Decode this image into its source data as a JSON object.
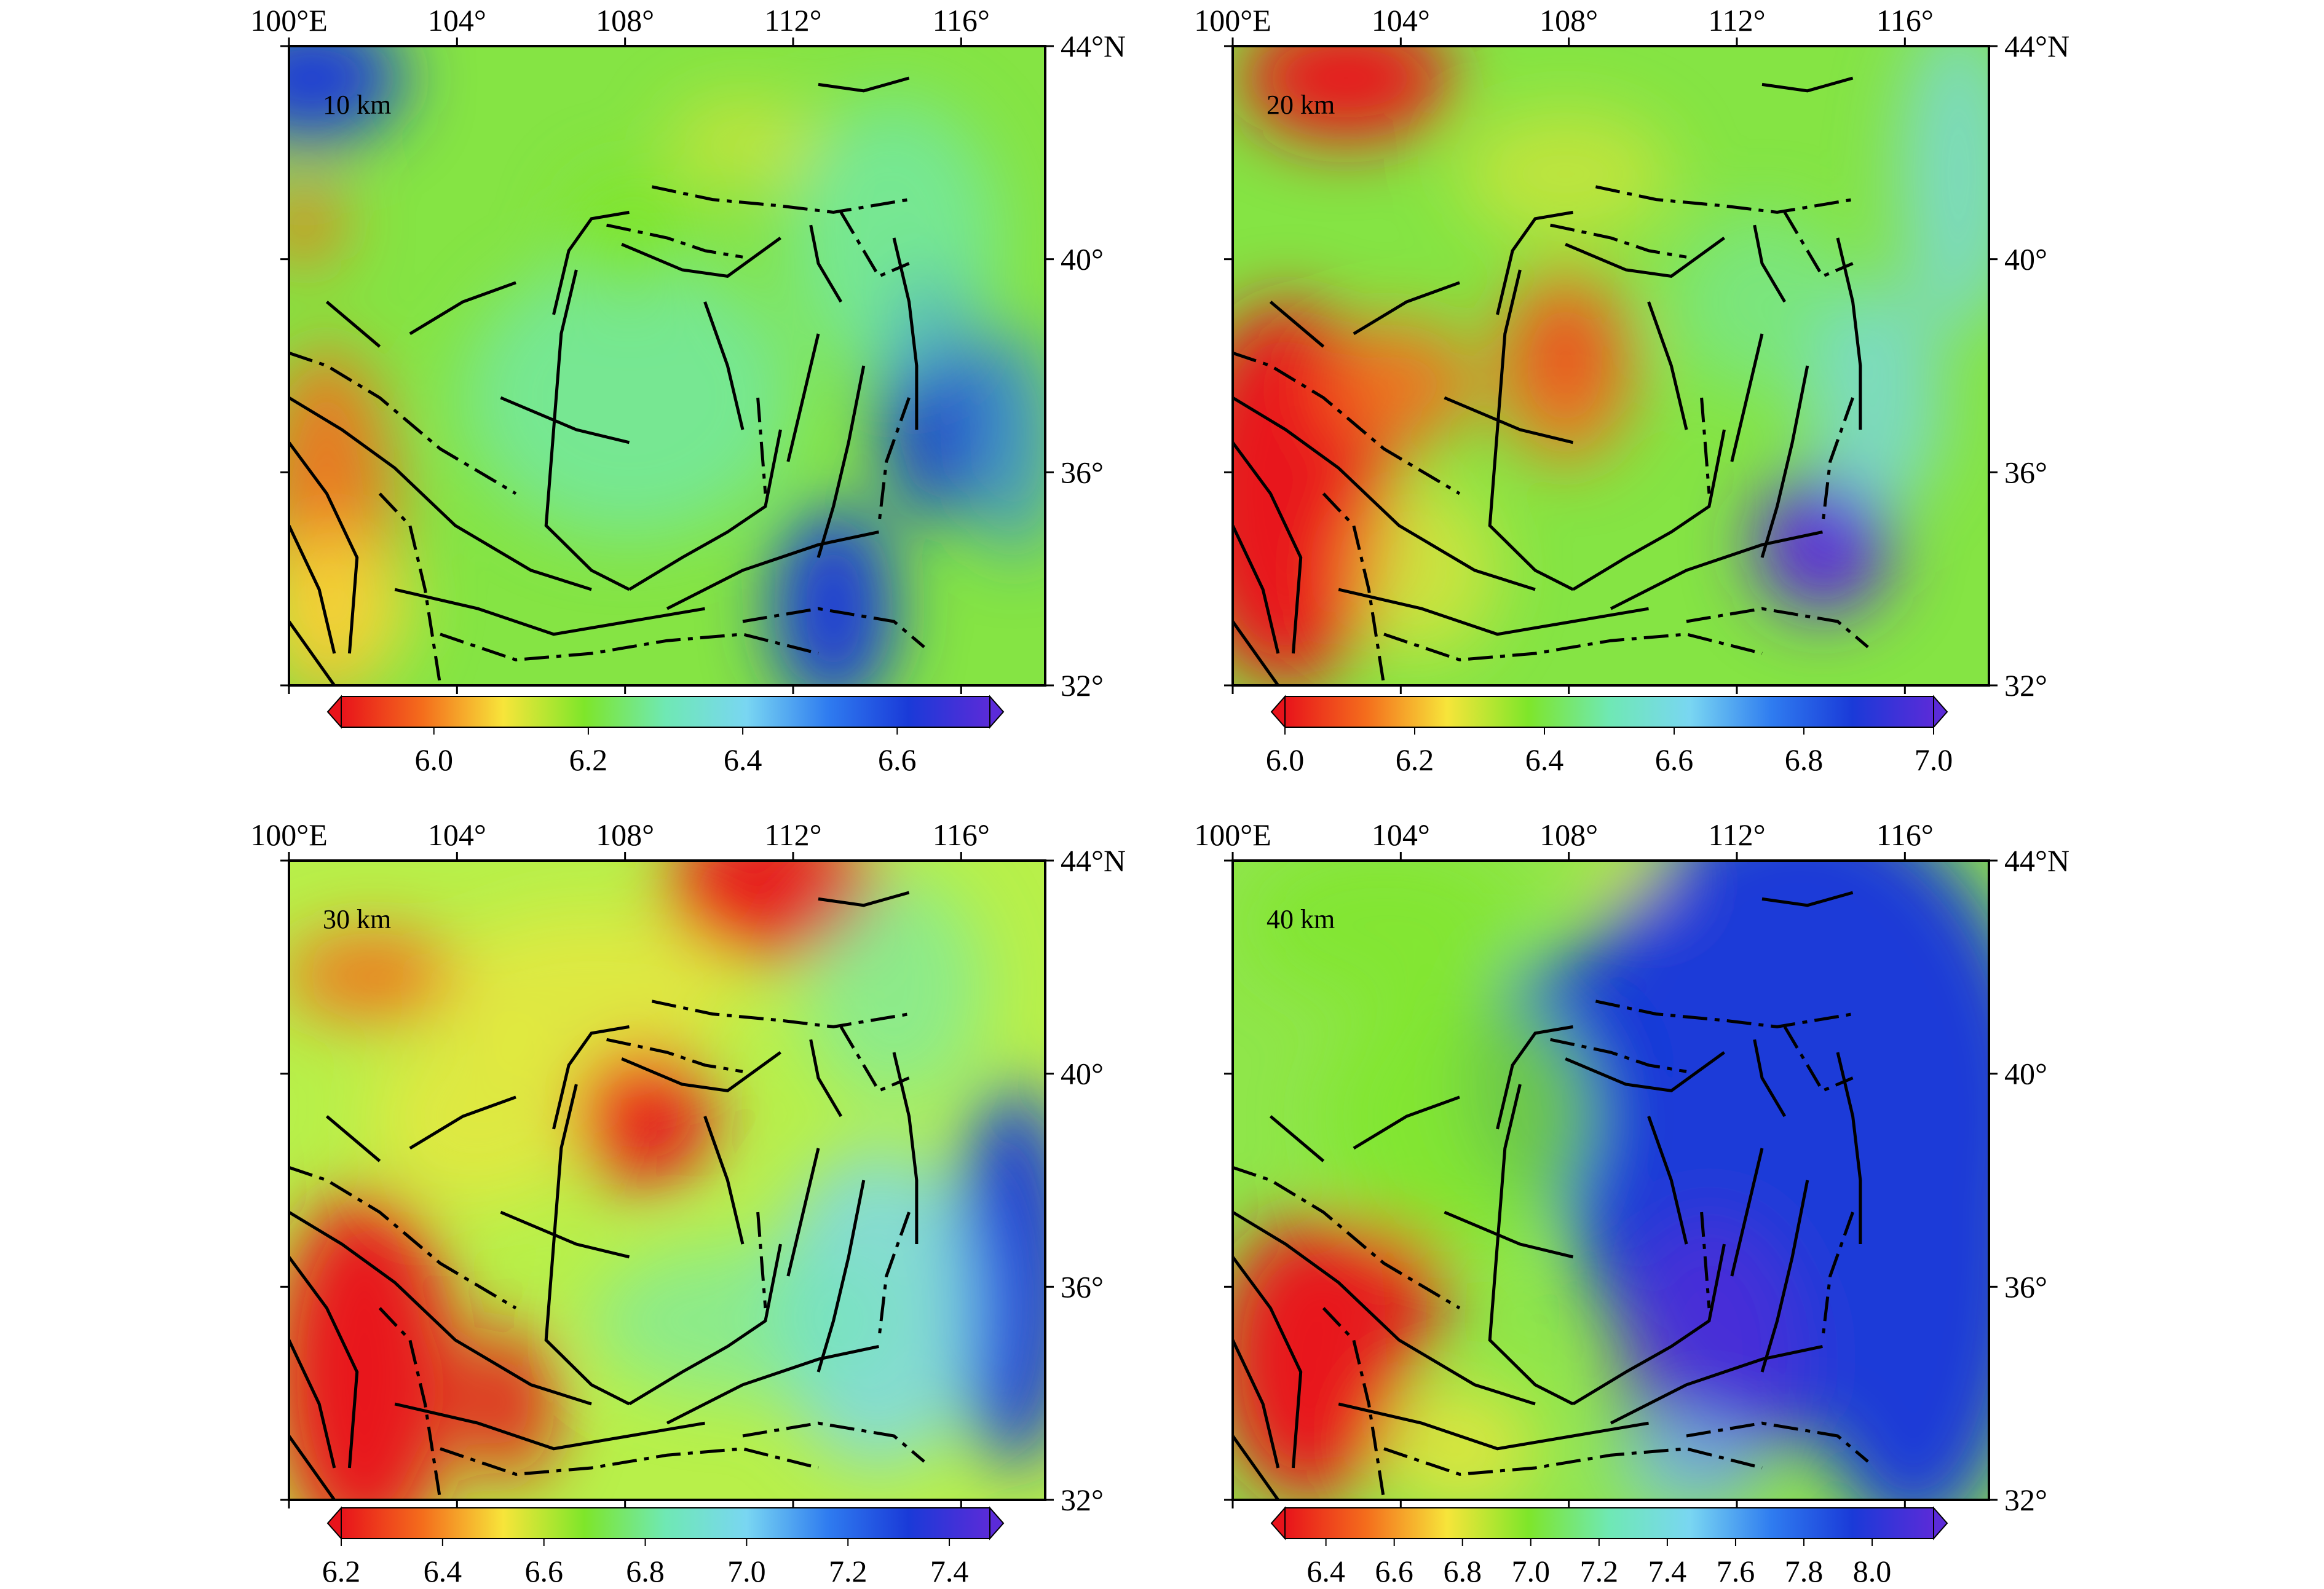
{
  "figure": {
    "panels": [
      {
        "depth_label": "10 km",
        "lon_ticks": [
          "100°E",
          "104°",
          "108°",
          "112°",
          "116°"
        ],
        "lat_ticks": [
          "44°N",
          "40°",
          "36°",
          "32°"
        ],
        "colorbar": {
          "ticks": [
            "6.0",
            "6.2",
            "6.4",
            "6.6"
          ],
          "min": 5.88,
          "max": 6.72,
          "tick_values": [
            6.0,
            6.2,
            6.4,
            6.6
          ]
        }
      },
      {
        "depth_label": "20 km",
        "lon_ticks": [
          "100°E",
          "104°",
          "108°",
          "112°",
          "116°"
        ],
        "lat_ticks": [
          "44°N",
          "40°",
          "36°",
          "32°"
        ],
        "colorbar": {
          "ticks": [
            "6.0",
            "6.2",
            "6.4",
            "6.6",
            "6.8",
            "7.0"
          ],
          "min": 6.0,
          "max": 7.0,
          "tick_values": [
            6.0,
            6.2,
            6.4,
            6.6,
            6.8,
            7.0
          ]
        }
      },
      {
        "depth_label": "30 km",
        "lon_ticks": [
          "100°E",
          "104°",
          "108°",
          "112°",
          "116°"
        ],
        "lat_ticks": [
          "44°N",
          "40°",
          "36°",
          "32°"
        ],
        "colorbar": {
          "ticks": [
            "6.2",
            "6.4",
            "6.6",
            "6.8",
            "7.0",
            "7.2",
            "7.4"
          ],
          "min": 6.2,
          "max": 7.48,
          "tick_values": [
            6.2,
            6.4,
            6.6,
            6.8,
            7.0,
            7.2,
            7.4
          ]
        }
      },
      {
        "depth_label": "40 km",
        "lon_ticks": [
          "100°E",
          "104°",
          "108°",
          "112°",
          "116°"
        ],
        "lat_ticks": [
          "44°N",
          "40°",
          "36°",
          "32°"
        ],
        "colorbar": {
          "ticks": [
            "6.4",
            "6.6",
            "6.8",
            "7.0",
            "7.2",
            "7.4",
            "7.6",
            "7.8",
            "8.0"
          ],
          "min": 6.28,
          "max": 8.18,
          "tick_values": [
            6.4,
            6.6,
            6.8,
            7.0,
            7.2,
            7.4,
            7.6,
            7.8,
            8.0
          ]
        }
      }
    ],
    "palette": [
      "#e8131b",
      "#f46d1c",
      "#f7e53a",
      "#7ee62a",
      "#6fe8b4",
      "#79d6f2",
      "#2f7cf0",
      "#1a3ad8",
      "#5b2bd8"
    ]
  }
}
